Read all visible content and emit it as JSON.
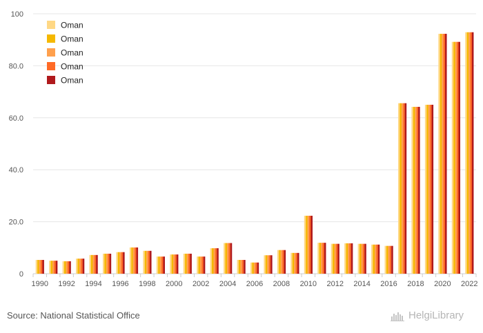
{
  "chart_data": {
    "type": "bar",
    "title": "",
    "xlabel": "",
    "ylabel": "",
    "ylim": [
      0,
      100
    ],
    "y_ticks": [
      "0",
      "20.0",
      "40.0",
      "60.0",
      "80.0",
      "100"
    ],
    "x_tick_labels": [
      "1990",
      "1992",
      "1994",
      "1996",
      "1998",
      "2000",
      "2002",
      "2004",
      "2006",
      "2008",
      "2010",
      "2012",
      "2014",
      "2016",
      "2018",
      "2020",
      "2022"
    ],
    "categories": [
      "1990",
      "1991",
      "1992",
      "1993",
      "1994",
      "1995",
      "1996",
      "1997",
      "1998",
      "1999",
      "2000",
      "2001",
      "2002",
      "2003",
      "2004",
      "2005",
      "2006",
      "2007",
      "2008",
      "2009",
      "2010",
      "2011",
      "2012",
      "2013",
      "2014",
      "2015",
      "2016",
      "2017",
      "2018",
      "2019",
      "2020",
      "2021",
      "2022"
    ],
    "grid": true,
    "legend_position": "top-left",
    "series": [
      {
        "name": "Oman",
        "color": "#FFD885",
        "values": [
          5.3,
          5.0,
          4.8,
          5.8,
          7.2,
          7.7,
          8.3,
          10.1,
          8.8,
          6.6,
          7.4,
          7.7,
          6.6,
          9.8,
          11.8,
          5.3,
          4.3,
          7.1,
          9.1,
          8.0,
          22.3,
          11.9,
          11.5,
          11.7,
          11.5,
          11.2,
          10.7,
          65.6,
          64.2,
          65.0,
          92.3,
          89.2,
          92.9
        ]
      },
      {
        "name": "Oman",
        "color": "#F5B800",
        "values": [
          5.3,
          5.0,
          4.8,
          5.8,
          7.2,
          7.7,
          8.3,
          10.1,
          8.8,
          6.6,
          7.4,
          7.7,
          6.6,
          9.8,
          11.8,
          5.3,
          4.3,
          7.1,
          9.1,
          8.0,
          22.3,
          11.9,
          11.5,
          11.7,
          11.5,
          11.2,
          10.7,
          65.6,
          64.2,
          65.0,
          92.3,
          89.2,
          92.9
        ]
      },
      {
        "name": "Oman",
        "color": "#FFA04D",
        "values": [
          5.3,
          5.0,
          4.8,
          5.8,
          7.2,
          7.7,
          8.3,
          10.1,
          8.8,
          6.6,
          7.4,
          7.7,
          6.6,
          9.8,
          11.8,
          5.3,
          4.3,
          7.1,
          9.1,
          8.0,
          22.3,
          11.9,
          11.5,
          11.7,
          11.5,
          11.2,
          10.7,
          65.6,
          64.2,
          65.0,
          92.3,
          89.2,
          92.9
        ]
      },
      {
        "name": "Oman",
        "color": "#FF6A26",
        "values": [
          5.3,
          5.0,
          4.8,
          5.8,
          7.2,
          7.7,
          8.3,
          10.1,
          8.8,
          6.6,
          7.4,
          7.7,
          6.6,
          9.8,
          11.8,
          5.3,
          4.3,
          7.1,
          9.1,
          8.0,
          22.3,
          11.9,
          11.5,
          11.7,
          11.5,
          11.2,
          10.7,
          65.6,
          64.2,
          65.0,
          92.3,
          89.2,
          92.9
        ]
      },
      {
        "name": "Oman",
        "color": "#B0191C",
        "values": [
          5.3,
          5.0,
          4.8,
          5.8,
          7.2,
          7.7,
          8.3,
          10.1,
          8.8,
          6.6,
          7.4,
          7.7,
          6.6,
          9.8,
          11.8,
          5.3,
          4.3,
          7.1,
          9.1,
          8.0,
          22.3,
          11.9,
          11.5,
          11.7,
          11.5,
          11.2,
          10.7,
          65.6,
          64.2,
          65.0,
          92.3,
          89.2,
          92.9
        ]
      }
    ]
  },
  "footer": {
    "source": "Source: National Statistical Office",
    "logo_text": "HelgiLibrary",
    "logo_icon": "helgi-library-logo-icon"
  }
}
